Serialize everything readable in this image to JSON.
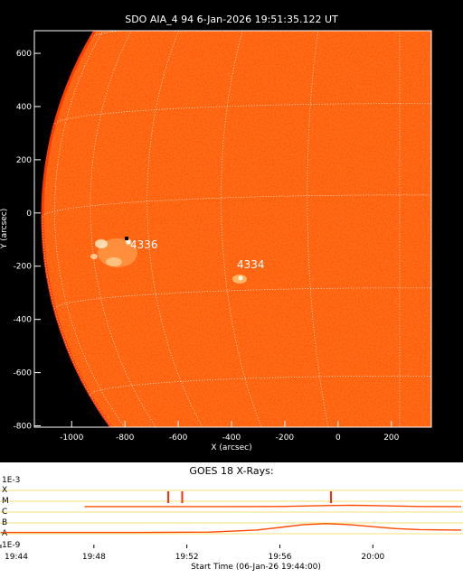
{
  "solar_image": {
    "title": "SDO AIA_4 94  6-Jan-2026 19:51:35.122 UT",
    "x_axis_label": "X (arcsec)",
    "y_axis_label": "Y (arcsec)",
    "x_ticks": [
      "-1000",
      "-800",
      "-600",
      "-400",
      "-200",
      "0",
      "200"
    ],
    "y_ticks": [
      "600",
      "400",
      "200",
      "0",
      "-200",
      "-400",
      "-600",
      "-800"
    ],
    "regions": [
      {
        "id": "region-4336",
        "label": "4336"
      },
      {
        "id": "region-4334",
        "label": "4334"
      }
    ],
    "disk_color": "#ff5a0a",
    "limb_color": "#ff3c00"
  },
  "goes": {
    "title": "GOES 18 X-Rays:",
    "y_labels_left": [
      "1E-3",
      "X",
      "M",
      "C",
      "B",
      "A",
      "1E-9"
    ],
    "x_ticks": [
      "19:44",
      "19:48",
      "19:52",
      "19:56",
      "20:00"
    ],
    "x_axis_label": "Start Time (06-Jan-26 19:44:00)",
    "curve_color": "#ff4a00",
    "marker_color": "#ff2a00"
  },
  "chart_data": [
    {
      "type": "line",
      "title": "GOES 18 X-Rays:",
      "xlabel": "Start Time (06-Jan-26 19:44:00)",
      "ylabel": "",
      "x_unit": "minutes since 19:44",
      "xlim": [
        0,
        19.8
      ],
      "y_scale": "log",
      "ylim": [
        1e-09,
        0.001
      ],
      "flare_classes": [
        "A",
        "B",
        "C",
        "M",
        "X"
      ],
      "series": [
        {
          "x": [
            3.6,
            6,
            8,
            10,
            12,
            13,
            14,
            15,
            16,
            17,
            18,
            19.8
          ],
          "y": [
            3.2e-06,
            3.2e-06,
            3.2e-06,
            3.2e-06,
            3.3e-06,
            3.6e-06,
            4e-06,
            4.2e-06,
            4e-06,
            3.6e-06,
            3.3e-06,
            3.2e-06
          ]
        },
        {
          "x": [
            0,
            3,
            6,
            9,
            11,
            12,
            13,
            14,
            15,
            16,
            17,
            18,
            19.8
          ],
          "y": [
            1.3e-08,
            1.3e-08,
            1.3e-08,
            1.4e-08,
            2.2e-08,
            3.8e-08,
            7e-08,
            8.6e-08,
            7e-08,
            4.5e-08,
            3e-08,
            2.4e-08,
            2.2e-08
          ]
        }
      ],
      "event_markers_x": [
        7.2,
        7.8,
        14.2
      ]
    }
  ]
}
